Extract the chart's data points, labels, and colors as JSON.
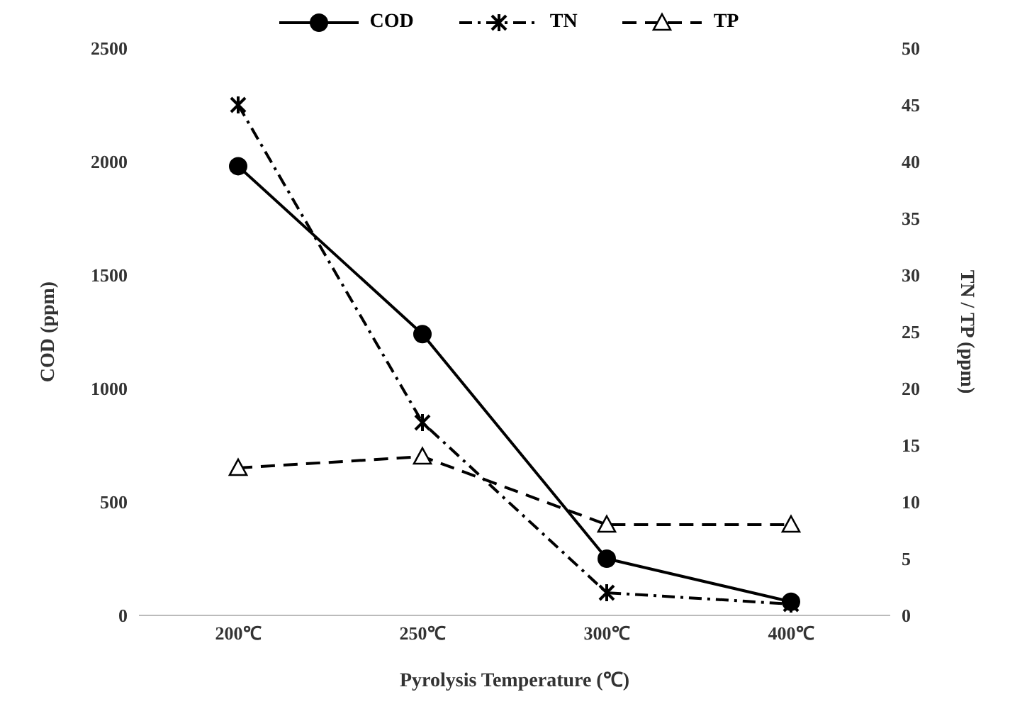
{
  "chart_data": {
    "type": "line",
    "categories": [
      "200℃",
      "250℃",
      "300℃",
      "400℃"
    ],
    "xlabel": "Pyrolysis Temperature (℃)",
    "ylabel": "COD (ppm)",
    "y2label": "TN / TP (ppm)",
    "ylim": [
      0,
      2500
    ],
    "yticks": [
      0,
      500,
      1000,
      1500,
      2000,
      2500
    ],
    "y2lim": [
      0,
      50
    ],
    "y2ticks": [
      0,
      5,
      10,
      15,
      20,
      25,
      30,
      35,
      40,
      45,
      50
    ],
    "grid": false,
    "legend": "top",
    "series": [
      {
        "name": "COD",
        "color": "#000000",
        "values": [
          1980,
          1240,
          250,
          60
        ],
        "marker": "circle",
        "line_style": "solid"
      },
      {
        "name": "TN",
        "color": "#000000",
        "values": [
          45,
          17,
          2,
          1
        ],
        "axis": "y2",
        "marker": "cross",
        "line_style": "dashdot"
      },
      {
        "name": "TP",
        "color": "#000000",
        "values": [
          13,
          14,
          8,
          8
        ],
        "axis": "y2",
        "marker": "triangle",
        "line_style": "dashed"
      }
    ]
  }
}
